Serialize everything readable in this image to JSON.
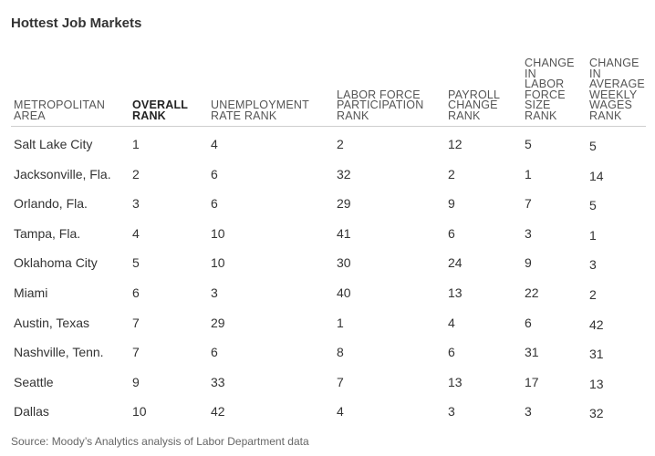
{
  "chart_data": {
    "type": "table",
    "title": "Hottest Job Markets",
    "columns": [
      "METROPOLITAN AREA",
      "OVERALL RANK",
      "UNEMPLOYMENT RATE RANK",
      "LABOR FORCE PARTICIPATION RANK",
      "PAYROLL CHANGE RANK",
      "CHANGE IN LABOR FORCE SIZE RANK",
      "CHANGE IN AVERAGE WEEKLY WAGES RANK"
    ],
    "header_lines": [
      [
        "METROPOLITAN",
        "AREA"
      ],
      [
        "OVERALL",
        "RANK"
      ],
      [
        "UNEMPLOYMENT",
        "RATE RANK"
      ],
      [
        "LABOR FORCE",
        "PARTICIPATION",
        "RANK"
      ],
      [
        "PAYROLL",
        "CHANGE",
        "RANK"
      ],
      [
        "CHANGE",
        "IN",
        "LABOR",
        "FORCE",
        "SIZE",
        "RANK"
      ],
      [
        "CHANGE",
        "IN",
        "AVERAGE",
        "WEEKLY",
        "WAGES",
        "RANK"
      ]
    ],
    "highlight_column": 1,
    "rows": [
      [
        "Salt Lake City",
        "1",
        "4",
        "2",
        "12",
        "5",
        "5"
      ],
      [
        "Jacksonville, Fla.",
        "2",
        "6",
        "32",
        "2",
        "1",
        "14"
      ],
      [
        "Orlando, Fla.",
        "3",
        "6",
        "29",
        "9",
        "7",
        "5"
      ],
      [
        "Tampa, Fla.",
        "4",
        "10",
        "41",
        "6",
        "3",
        "1"
      ],
      [
        "Oklahoma City",
        "5",
        "10",
        "30",
        "24",
        "9",
        "3"
      ],
      [
        "Miami",
        "6",
        "3",
        "40",
        "13",
        "22",
        "2"
      ],
      [
        "Austin, Texas",
        "7",
        "29",
        "1",
        "4",
        "6",
        "42"
      ],
      [
        "Nashville, Tenn.",
        "7",
        "6",
        "8",
        "6",
        "31",
        "31"
      ],
      [
        "Seattle",
        "9",
        "33",
        "7",
        "13",
        "17",
        "13"
      ],
      [
        "Dallas",
        "10",
        "42",
        "4",
        "3",
        "3",
        "32"
      ]
    ],
    "source": "Source: Moody’s Analytics analysis of Labor Department data"
  }
}
